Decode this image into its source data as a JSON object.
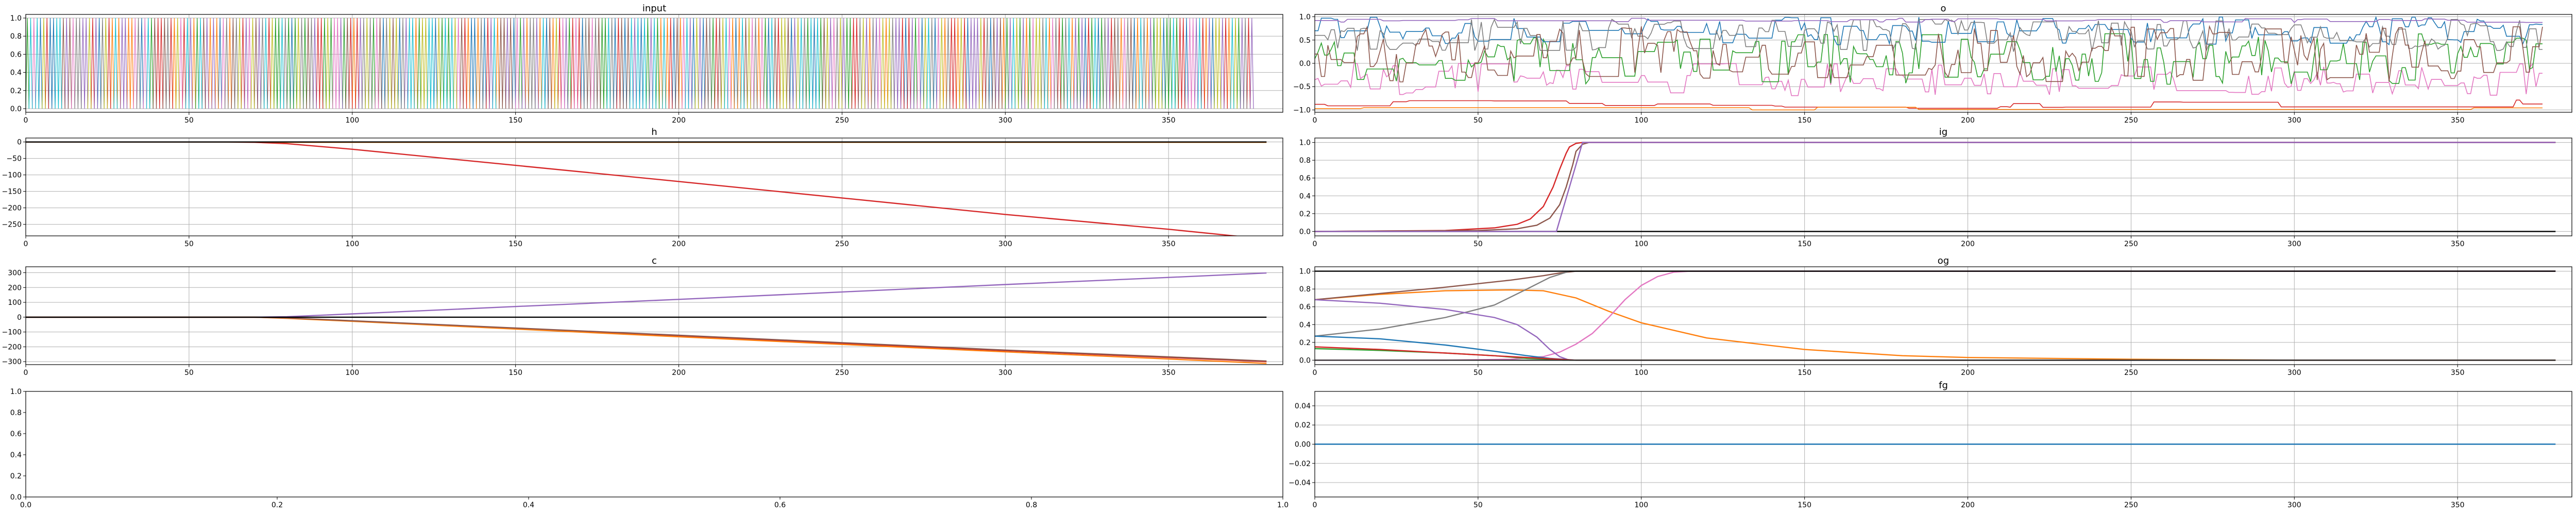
{
  "chart_data": [
    {
      "type": "line",
      "title": "input",
      "xlim": [
        0,
        385
      ],
      "ylim": [
        -0.04,
        1.04
      ],
      "xticks": [
        0,
        50,
        100,
        150,
        200,
        250,
        300,
        350
      ],
      "yticks": [
        0.0,
        0.2,
        0.4,
        0.6,
        0.8,
        1.0
      ],
      "grid": true,
      "x_range": [
        0,
        376
      ],
      "description_of_series": "dense one-hot signals switching between 0 and 1 at every step",
      "series_colors": [
        "#1f77b4",
        "#ff7f0e",
        "#2ca02c",
        "#d62728",
        "#9467bd",
        "#8c564b",
        "#e377c2",
        "#7f7f7f",
        "#bcbd22",
        "#17becf"
      ],
      "series": []
    },
    {
      "type": "line",
      "title": "o",
      "xlim": [
        0,
        385
      ],
      "ylim": [
        -1.05,
        1.05
      ],
      "xticks": [
        0,
        50,
        100,
        150,
        200,
        250,
        300,
        350
      ],
      "yticks": [
        -1.0,
        -0.5,
        0.0,
        0.5,
        1.0
      ],
      "grid": true,
      "x_range": [
        0,
        376
      ],
      "series_colors": [
        "#1f77b4",
        "#ff7f0e",
        "#2ca02c",
        "#d62728",
        "#9467bd",
        "#8c564b",
        "#e377c2",
        "#7f7f7f"
      ],
      "series": []
    },
    {
      "type": "line",
      "title": "h",
      "xlim": [
        0,
        385
      ],
      "ylim": [
        -285,
        12
      ],
      "xticks": [
        0,
        50,
        100,
        150,
        200,
        250,
        300,
        350
      ],
      "yticks": [
        0,
        -50,
        -100,
        -150,
        -200,
        -250
      ],
      "grid": true,
      "series": [
        {
          "color": "#d62728",
          "x": [
            0,
            60,
            70,
            80,
            100,
            150,
            200,
            250,
            300,
            350,
            380
          ],
          "y": [
            0,
            0,
            -1,
            -5,
            -22,
            -71,
            -120,
            -170,
            -220,
            -265,
            -295
          ]
        },
        {
          "color": "#ff7f0e",
          "x": [
            0,
            70,
            80,
            380
          ],
          "y": [
            0,
            0,
            -1,
            -1
          ]
        },
        {
          "color": "#000000",
          "x": [
            0,
            380
          ],
          "y": [
            0,
            0
          ]
        }
      ]
    },
    {
      "type": "line",
      "title": "ig",
      "xlim": [
        0,
        385
      ],
      "ylim": [
        -0.05,
        1.05
      ],
      "xticks": [
        0,
        50,
        100,
        150,
        200,
        250,
        300,
        350
      ],
      "yticks": [
        0.0,
        0.2,
        0.4,
        0.6,
        0.8,
        1.0
      ],
      "grid": true,
      "series": [
        {
          "color": "#000000",
          "x": [
            0,
            380
          ],
          "y": [
            0.0,
            0.0
          ]
        },
        {
          "color": "#d62728",
          "x": [
            0,
            40,
            55,
            62,
            66,
            70,
            73,
            75,
            77,
            78,
            80,
            82,
            380
          ],
          "y": [
            0.0,
            0.01,
            0.04,
            0.08,
            0.14,
            0.28,
            0.5,
            0.7,
            0.88,
            0.95,
            0.99,
            1.0,
            1.0
          ]
        },
        {
          "color": "#8c564b",
          "x": [
            0,
            50,
            62,
            68,
            72,
            75,
            77,
            79,
            80,
            82,
            84,
            380
          ],
          "y": [
            0.0,
            0.01,
            0.03,
            0.07,
            0.15,
            0.3,
            0.5,
            0.75,
            0.9,
            0.98,
            1.0,
            1.0
          ]
        },
        {
          "color": "#9467bd",
          "x": [
            0,
            74,
            82,
            380
          ],
          "y": [
            0.0,
            0.0,
            1.0,
            1.0
          ]
        }
      ]
    },
    {
      "type": "line",
      "title": "c",
      "xlim": [
        0,
        385
      ],
      "ylim": [
        -320,
        340
      ],
      "xticks": [
        0,
        50,
        100,
        150,
        200,
        250,
        300,
        350
      ],
      "yticks": [
        300,
        200,
        100,
        0,
        -100,
        -200,
        -300
      ],
      "grid": true,
      "series": [
        {
          "color": "#9467bd",
          "x": [
            0,
            70,
            80,
            100,
            150,
            200,
            250,
            300,
            350,
            380
          ],
          "y": [
            0,
            0,
            3,
            22,
            72,
            120,
            170,
            220,
            268,
            298
          ]
        },
        {
          "color": "#d62728",
          "x": [
            0,
            70,
            80,
            100,
            150,
            200,
            250,
            300,
            350,
            380
          ],
          "y": [
            0,
            0,
            -6,
            -25,
            -76,
            -126,
            -178,
            -226,
            -272,
            -300
          ]
        },
        {
          "color": "#ff7f0e",
          "x": [
            0,
            70,
            80,
            100,
            150,
            200,
            250,
            300,
            350,
            380
          ],
          "y": [
            0,
            0,
            -8,
            -28,
            -80,
            -132,
            -184,
            -234,
            -282,
            -312
          ]
        },
        {
          "color": "#8c564b",
          "x": [
            0,
            70,
            80,
            100,
            150,
            200,
            250,
            300,
            350,
            380
          ],
          "y": [
            0,
            0,
            -5,
            -24,
            -73,
            -122,
            -172,
            -222,
            -268,
            -296
          ]
        },
        {
          "color": "#000000",
          "x": [
            0,
            380
          ],
          "y": [
            0,
            0
          ]
        }
      ]
    },
    {
      "type": "line",
      "title": "og",
      "xlim": [
        0,
        385
      ],
      "ylim": [
        -0.05,
        1.05
      ],
      "xticks": [
        0,
        50,
        100,
        150,
        200,
        250,
        300,
        350
      ],
      "yticks": [
        0.0,
        0.2,
        0.4,
        0.6,
        0.8,
        1.0
      ],
      "grid": true,
      "series": [
        {
          "color": "#ff7f0e",
          "x": [
            0,
            20,
            40,
            60,
            70,
            80,
            90,
            100,
            120,
            150,
            180,
            200,
            250,
            300,
            380
          ],
          "y": [
            0.68,
            0.74,
            0.78,
            0.79,
            0.78,
            0.7,
            0.55,
            0.42,
            0.25,
            0.12,
            0.05,
            0.03,
            0.01,
            0.0,
            0.0
          ]
        },
        {
          "color": "#8c564b",
          "x": [
            0,
            20,
            40,
            60,
            70,
            75,
            80,
            380
          ],
          "y": [
            0.68,
            0.75,
            0.82,
            0.9,
            0.95,
            0.98,
            1.0,
            1.0
          ]
        },
        {
          "color": "#7f7f7f",
          "x": [
            0,
            20,
            40,
            55,
            65,
            72,
            78,
            380
          ],
          "y": [
            0.27,
            0.35,
            0.48,
            0.62,
            0.8,
            0.93,
            1.0,
            1.0
          ]
        },
        {
          "color": "#e377c2",
          "x": [
            0,
            40,
            60,
            70,
            75,
            80,
            85,
            90,
            95,
            100,
            105,
            110,
            115,
            380
          ],
          "y": [
            0.0,
            0.0,
            0.01,
            0.04,
            0.09,
            0.18,
            0.3,
            0.48,
            0.68,
            0.84,
            0.94,
            0.99,
            1.0,
            1.0
          ]
        },
        {
          "color": "#9467bd",
          "x": [
            0,
            20,
            40,
            55,
            62,
            68,
            72,
            75,
            78,
            380
          ],
          "y": [
            0.68,
            0.64,
            0.57,
            0.48,
            0.4,
            0.26,
            0.12,
            0.04,
            0.0,
            0.0
          ]
        },
        {
          "color": "#1f77b4",
          "x": [
            0,
            20,
            40,
            55,
            65,
            72,
            76,
            80,
            380
          ],
          "y": [
            0.27,
            0.24,
            0.17,
            0.1,
            0.05,
            0.02,
            0.01,
            0.0,
            0.0
          ]
        },
        {
          "color": "#2ca02c",
          "x": [
            0,
            20,
            40,
            55,
            65,
            72,
            76,
            380
          ],
          "y": [
            0.13,
            0.11,
            0.08,
            0.05,
            0.02,
            0.01,
            0.0,
            0.0
          ]
        },
        {
          "color": "#d62728",
          "x": [
            0,
            20,
            40,
            60,
            70,
            80,
            380
          ],
          "y": [
            0.15,
            0.12,
            0.08,
            0.04,
            0.02,
            0.0,
            0.0
          ]
        },
        {
          "color": "#000000",
          "x": [
            0,
            380
          ],
          "y": [
            1.0,
            1.0
          ]
        },
        {
          "color": "#333333",
          "x": [
            0,
            380
          ],
          "y": [
            0.0,
            0.0
          ]
        }
      ]
    },
    {
      "type": "line",
      "title": "",
      "xlim": [
        0.0,
        1.0
      ],
      "ylim": [
        0.0,
        1.0
      ],
      "xticks": [
        0.0,
        0.2,
        0.4,
        0.6,
        0.8,
        1.0
      ],
      "yticks": [
        0.0,
        0.2,
        0.4,
        0.6,
        0.8,
        1.0
      ],
      "grid": false,
      "series": []
    },
    {
      "type": "line",
      "title": "fg",
      "xlim": [
        0,
        385
      ],
      "ylim": [
        -0.055,
        0.055
      ],
      "xticks": [
        0,
        50,
        100,
        150,
        200,
        250,
        300,
        350
      ],
      "yticks": [
        0.04,
        0.02,
        0.0,
        -0.02,
        -0.04
      ],
      "grid": true,
      "series": [
        {
          "color": "#1f77b4",
          "x": [
            0,
            380
          ],
          "y": [
            0.0,
            0.0
          ]
        }
      ]
    }
  ]
}
